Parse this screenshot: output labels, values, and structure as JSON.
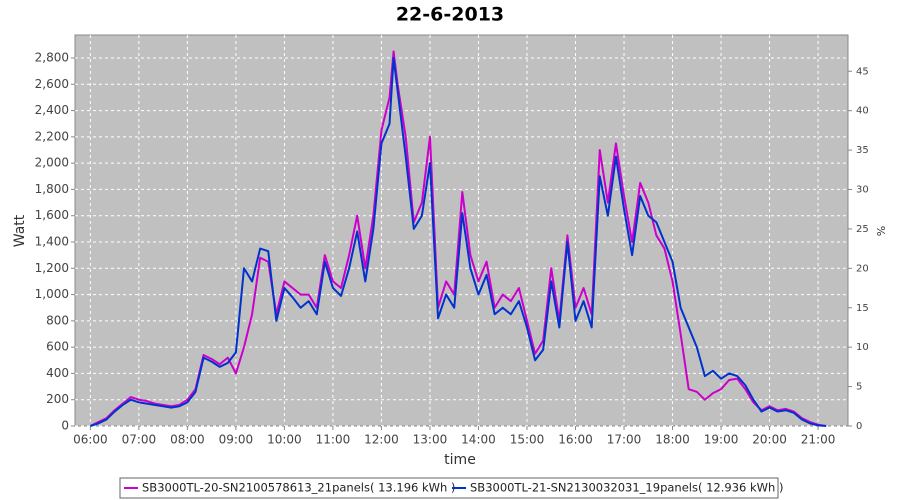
{
  "chart_data": {
    "type": "line",
    "title": "22-6-2013",
    "x_label": "time",
    "y_label": "Watt",
    "y2_label": "%",
    "x": [
      "06:00",
      "06:10",
      "06:20",
      "06:30",
      "06:40",
      "06:50",
      "07:00",
      "07:10",
      "07:20",
      "07:30",
      "07:40",
      "07:50",
      "08:00",
      "08:10",
      "08:20",
      "08:30",
      "08:40",
      "08:50",
      "09:00",
      "09:10",
      "09:20",
      "09:30",
      "09:40",
      "09:50",
      "10:00",
      "10:10",
      "10:20",
      "10:30",
      "10:40",
      "10:50",
      "11:00",
      "11:10",
      "11:20",
      "11:30",
      "11:40",
      "11:50",
      "12:00",
      "12:10",
      "12:15",
      "12:20",
      "12:30",
      "12:40",
      "12:50",
      "13:00",
      "13:10",
      "13:20",
      "13:30",
      "13:40",
      "13:50",
      "14:00",
      "14:10",
      "14:20",
      "14:30",
      "14:40",
      "14:50",
      "15:00",
      "15:10",
      "15:20",
      "15:30",
      "15:40",
      "15:50",
      "16:00",
      "16:10",
      "16:20",
      "16:30",
      "16:40",
      "16:50",
      "17:00",
      "17:10",
      "17:20",
      "17:30",
      "17:40",
      "17:50",
      "18:00",
      "18:10",
      "18:20",
      "18:30",
      "18:40",
      "18:50",
      "19:00",
      "19:10",
      "19:20",
      "19:30",
      "19:40",
      "19:50",
      "20:00",
      "20:10",
      "20:20",
      "20:30",
      "20:40",
      "20:50",
      "21:00",
      "21:10"
    ],
    "series": [
      {
        "name": "SB3000TL-20-SN2100578613_21panels( 13.196 kWh )",
        "color": "#cc00cc",
        "values": [
          0,
          30,
          60,
          120,
          170,
          220,
          200,
          190,
          170,
          160,
          150,
          160,
          200,
          280,
          540,
          510,
          470,
          520,
          400,
          600,
          850,
          1280,
          1250,
          850,
          1100,
          1050,
          1000,
          1000,
          900,
          1300,
          1100,
          1050,
          1300,
          1600,
          1200,
          1600,
          2250,
          2500,
          2850,
          2600,
          2200,
          1550,
          1700,
          2200,
          900,
          1100,
          1000,
          1780,
          1300,
          1100,
          1250,
          900,
          1000,
          950,
          1050,
          800,
          550,
          650,
          1200,
          800,
          1450,
          900,
          1050,
          850,
          2100,
          1700,
          2150,
          1750,
          1400,
          1850,
          1700,
          1450,
          1350,
          1100,
          700,
          280,
          260,
          200,
          250,
          280,
          350,
          360,
          280,
          180,
          120,
          150,
          120,
          130,
          110,
          60,
          30,
          10,
          0
        ]
      },
      {
        "name": "SB3000TL-21-SN2130032031_19panels( 12.936 kWh )",
        "color": "#0033cc",
        "values": [
          0,
          20,
          50,
          110,
          160,
          200,
          180,
          170,
          160,
          150,
          140,
          150,
          180,
          260,
          520,
          490,
          450,
          480,
          560,
          1200,
          1100,
          1350,
          1330,
          800,
          1050,
          980,
          900,
          950,
          850,
          1250,
          1050,
          990,
          1200,
          1480,
          1100,
          1500,
          2150,
          2300,
          2800,
          2550,
          2050,
          1500,
          1600,
          2000,
          820,
          1000,
          900,
          1620,
          1200,
          1000,
          1150,
          850,
          900,
          850,
          950,
          750,
          500,
          580,
          1100,
          750,
          1400,
          800,
          950,
          750,
          1900,
          1600,
          2050,
          1650,
          1300,
          1750,
          1600,
          1550,
          1400,
          1250,
          900,
          750,
          600,
          380,
          420,
          360,
          400,
          380,
          310,
          200,
          110,
          140,
          110,
          120,
          100,
          50,
          20,
          5,
          0
        ]
      }
    ],
    "xlim": [
      "05:41",
      "21:37"
    ],
    "xticks": [
      "06:00",
      "07:00",
      "08:00",
      "09:00",
      "10:00",
      "11:00",
      "12:00",
      "13:00",
      "14:00",
      "15:00",
      "16:00",
      "17:00",
      "18:00",
      "19:00",
      "20:00",
      "21:00"
    ],
    "ylim": [
      0,
      2975
    ],
    "yticks": [
      0,
      200,
      400,
      600,
      800,
      {
        "value": 1000,
        "label": "1,000"
      },
      {
        "value": 1200,
        "label": "1,200"
      },
      {
        "value": 1400,
        "label": "1,400"
      },
      {
        "value": 1600,
        "label": "1,600"
      },
      {
        "value": 1800,
        "label": "1,800"
      },
      {
        "value": 2000,
        "label": "2,000"
      },
      {
        "value": 2200,
        "label": "2,200"
      },
      {
        "value": 2400,
        "label": "2,400"
      },
      {
        "value": 2600,
        "label": "2,600"
      },
      {
        "value": 2800,
        "label": "2,800"
      }
    ],
    "y2lim": [
      0,
      49.6
    ],
    "y2ticks": [
      0,
      5,
      10,
      15,
      20,
      25,
      30,
      35,
      40,
      45
    ],
    "grid": true
  }
}
